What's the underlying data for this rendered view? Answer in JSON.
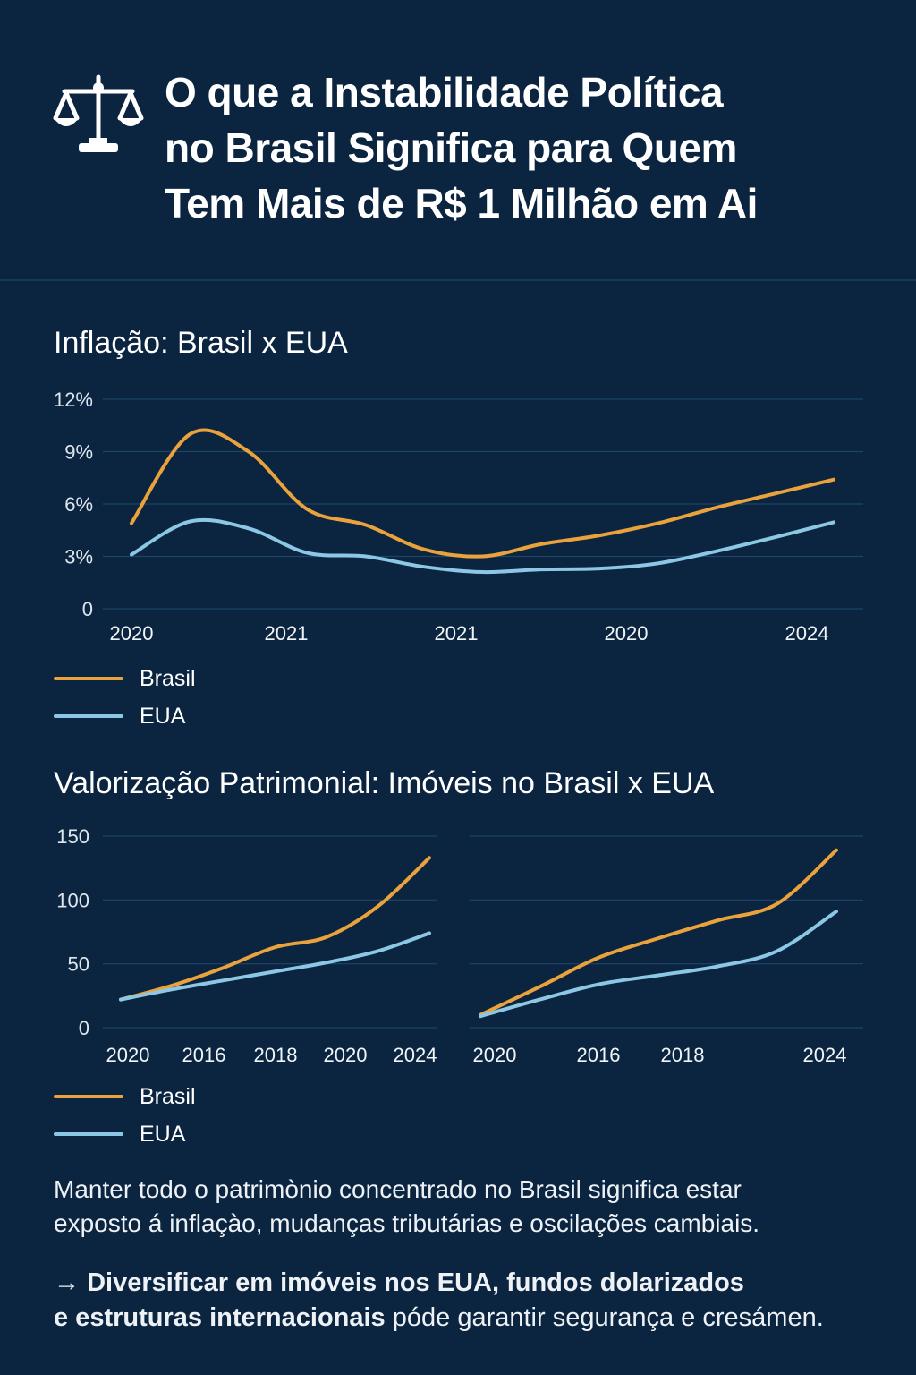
{
  "header": {
    "icon": "scales-of-justice-icon",
    "title_lines": [
      "O que a Instabilidade Política",
      "no Brasil Significa para Quem",
      "Tem Mais de R$ 1 Milhão em Ai"
    ]
  },
  "colors": {
    "background": "#0b2540",
    "brasil": "#eaa23c",
    "eua": "#8cc8e6",
    "grid": "#1e4466"
  },
  "chart_data": [
    {
      "type": "line",
      "title": "Inflação: Brasil x EUA",
      "x_tick_labels": [
        "2020",
        "2021",
        "2021",
        "2020",
        "2024"
      ],
      "y_tick_labels": [
        "12%",
        "9%",
        "6%",
        "3%",
        "0"
      ],
      "ylim": [
        0,
        12
      ],
      "grid": true,
      "legend_placement": "bottom-left",
      "series": [
        {
          "name": "Brasil",
          "values": [
            4.9,
            10.0,
            9.0,
            5.7,
            4.8,
            3.4,
            3.0,
            3.7,
            4.2,
            4.9,
            5.8,
            6.6,
            7.4
          ]
        },
        {
          "name": "EUA",
          "values": [
            3.1,
            5.0,
            4.6,
            3.2,
            3.0,
            2.4,
            2.1,
            2.25,
            2.3,
            2.6,
            3.3,
            4.1,
            4.95
          ]
        }
      ]
    },
    {
      "type": "line",
      "title": "Valorização Patrimonial: Imóveis no Brasil x EUA",
      "x_tick_labels": [
        "2020",
        "2016",
        "2018",
        "2020",
        "2024"
      ],
      "y_tick_labels": [
        "150",
        "100",
        "50",
        "0"
      ],
      "ylim": [
        0,
        150
      ],
      "grid": true,
      "series": [
        {
          "name": "Brasil",
          "values": [
            22,
            33,
            47,
            63,
            71,
            95,
            133
          ]
        },
        {
          "name": "EUA",
          "values": [
            22,
            30,
            37,
            44,
            51,
            60,
            74
          ]
        }
      ]
    },
    {
      "type": "line",
      "x_tick_labels": [
        "2020",
        "2016",
        "2018",
        "2024"
      ],
      "ylim": [
        0,
        150
      ],
      "grid": true,
      "series": [
        {
          "name": "Brasil",
          "values": [
            10,
            32,
            55,
            70,
            84,
            97,
            139
          ]
        },
        {
          "name": "EUA",
          "values": [
            9,
            22,
            34,
            41,
            48,
            60,
            91
          ]
        }
      ]
    }
  ],
  "legend1": {
    "brasil": "Brasil",
    "eua": "EUA"
  },
  "legend2": {
    "brasil": "Brasil",
    "eua": "EUA"
  },
  "body": {
    "p1_line1": "Manter todo o patrimònio concentrado no Brasil significa estar",
    "p1_line2": "exposto á inflaçào, mudanças tributárias e oscilações cambiais.",
    "p2_arrow": "→",
    "p2_line1": "Diversificar em imóveis nos EUA, fundos dolarizados",
    "p2_line2_bold": "e estruturas internacionais",
    "p2_line2_rest": " póde garantir segurança e cresámen."
  }
}
